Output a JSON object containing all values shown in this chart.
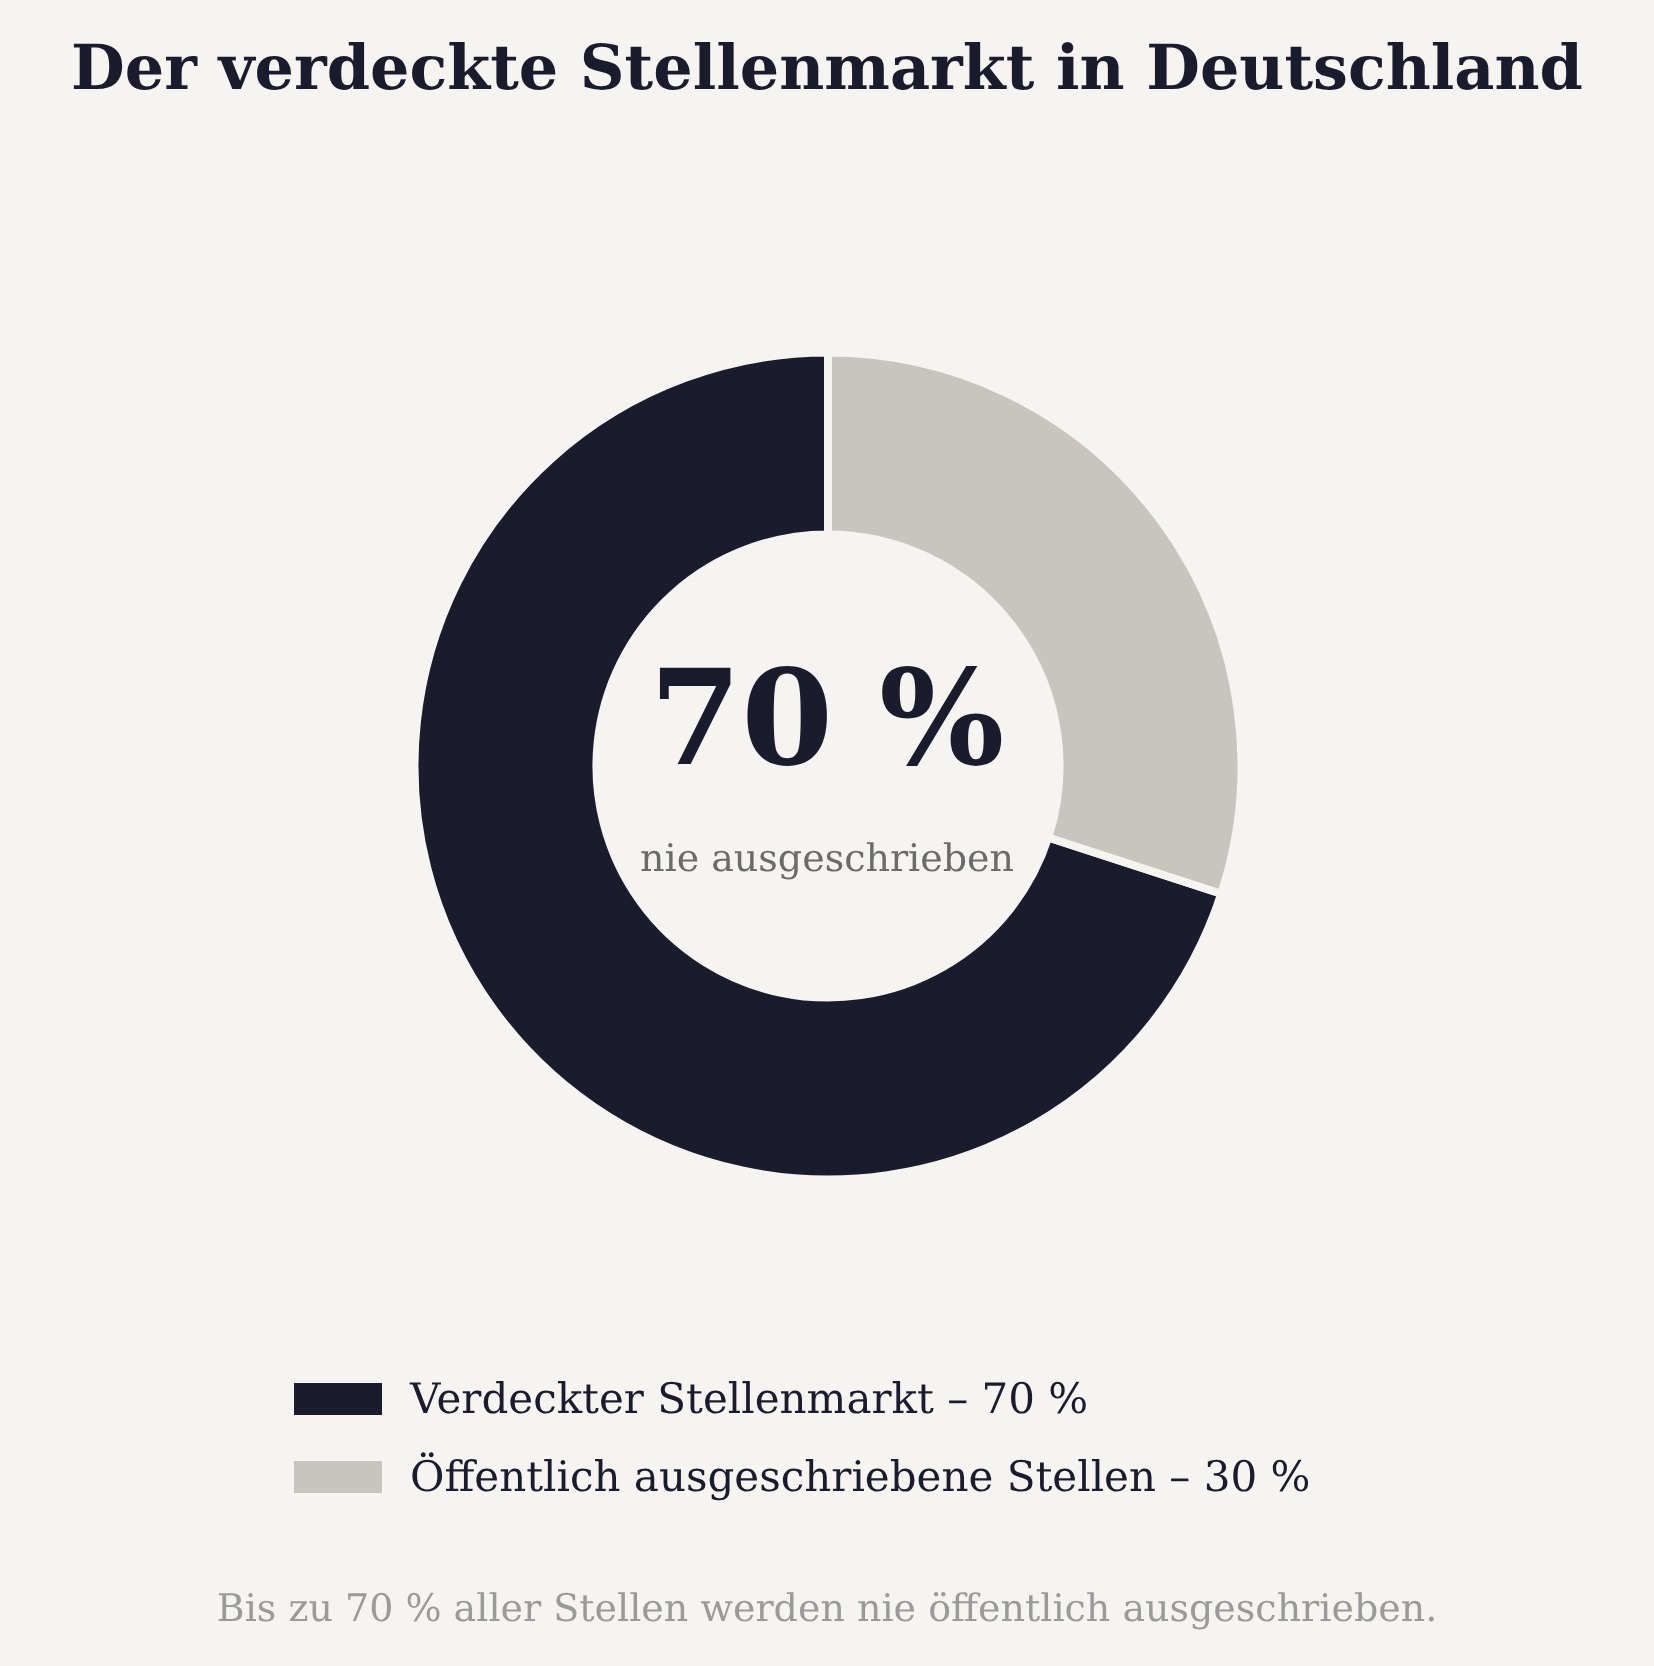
{
  "chart_data": {
    "type": "donut",
    "title": "Der verdeckte Stellenmarkt in Deutschland",
    "categories": [
      "Verdeckter Stellenmarkt – 70 %",
      "Öffentlich ausgeschriebene Stellen – 30 %"
    ],
    "values": [
      70,
      30
    ],
    "colors": [
      "#1b1b2e",
      "#c8c5bf"
    ],
    "legend": "bottom",
    "annotations": [
      "70 %",
      "nie ausgeschrieben",
      "Bis zu 70 % aller Stellen werden nie öffentlich ausgeschrieben."
    ]
  }
}
